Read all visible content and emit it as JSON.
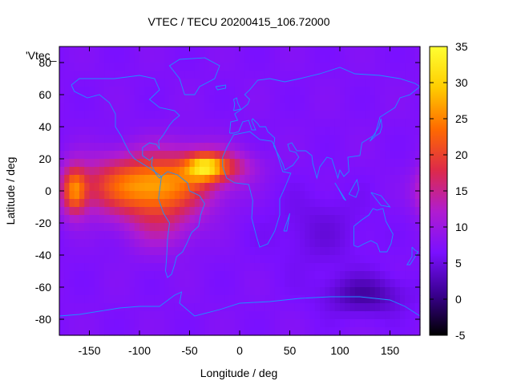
{
  "chart_data": {
    "type": "heatmap",
    "title": "VTEC / TECU 20200415_106.72000",
    "xlabel": "Longitude / deg",
    "ylabel": "Latitude / deg",
    "legend_key": "'Vtec_",
    "xlim": [
      -180,
      180
    ],
    "ylim": [
      -90,
      90
    ],
    "x_ticks": [
      -150,
      -100,
      -50,
      0,
      50,
      100,
      150
    ],
    "y_ticks": [
      80,
      60,
      40,
      20,
      0,
      -20,
      -40,
      -60,
      -80
    ],
    "colorbar": {
      "range": [
        -5,
        35
      ],
      "ticks": [
        35,
        30,
        25,
        20,
        15,
        10,
        5,
        0,
        -5
      ],
      "palette": [
        "#000000",
        "#3a0090",
        "#7a10ff",
        "#b01cd0",
        "#dd2a4a",
        "#ff6a00",
        "#ffcc00",
        "#ffff33"
      ]
    },
    "peak_region": {
      "lon": -35,
      "lat": 15,
      "value": 33
    },
    "background_level": 7,
    "coastline_color": "#1e90ff"
  }
}
